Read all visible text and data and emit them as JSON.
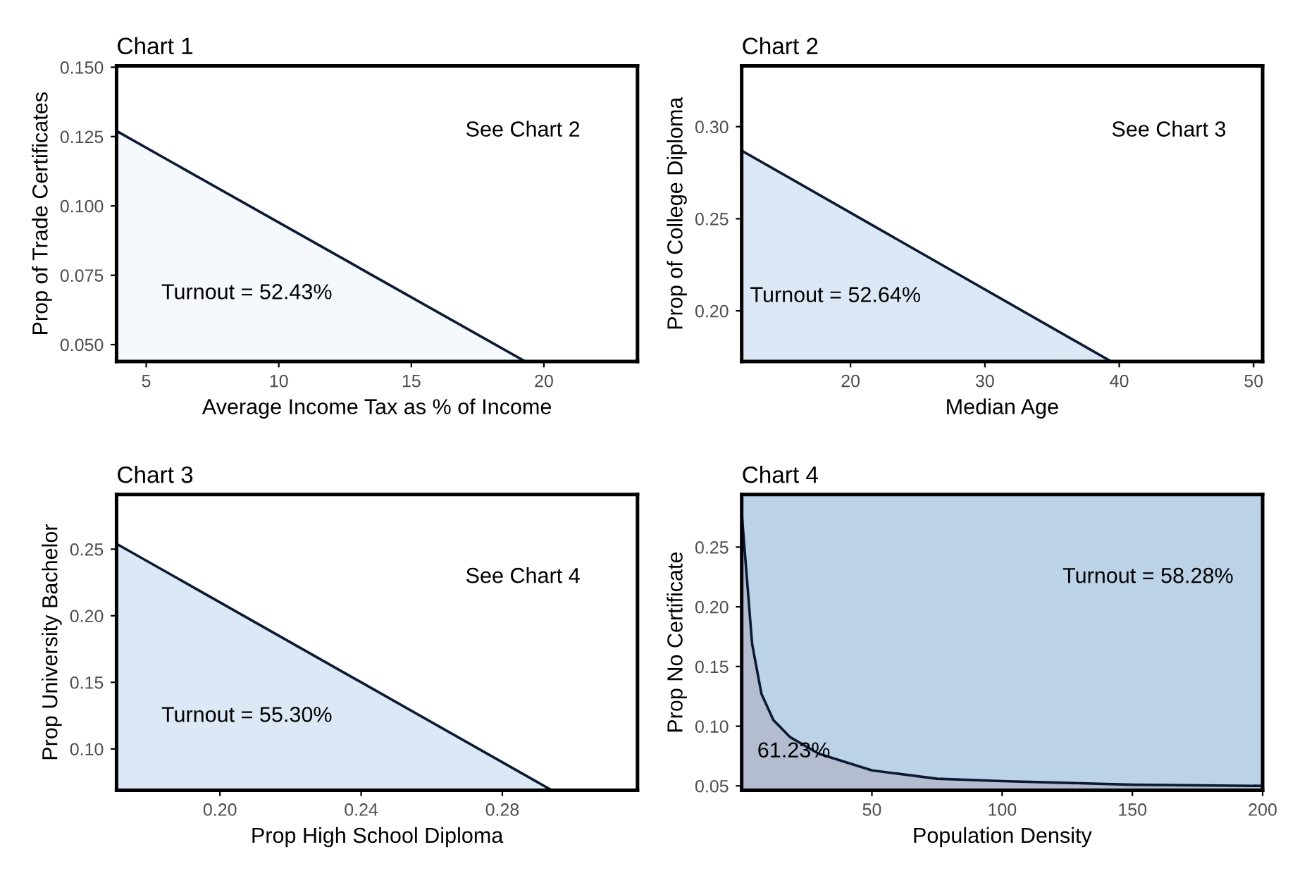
{
  "chart_data": [
    {
      "type": "area",
      "title": "Chart 1",
      "xlabel": "Average Income Tax as % of Income",
      "ylabel": "Prop of Trade Certificates",
      "xlim": [
        3.88,
        23.53
      ],
      "ylim": [
        0.0439,
        0.1505
      ],
      "xticks": [
        5,
        10,
        15,
        20
      ],
      "yticks": [
        {
          "value": 0.05,
          "label": "0.050"
        },
        {
          "value": 0.075,
          "label": "0.075"
        },
        {
          "value": 0.1,
          "label": "0.100"
        },
        {
          "value": 0.125,
          "label": "0.125"
        },
        {
          "value": 0.15,
          "label": "0.150"
        }
      ],
      "grid": false,
      "series": [
        {
          "color": "#f5f9fe",
          "x": [
            3.88,
            19.3
          ],
          "values": [
            0.127,
            0.0439
          ]
        }
      ],
      "annotations": [
        "See Chart 2",
        "Turnout = 52.43%"
      ]
    },
    {
      "type": "area",
      "title": "Chart 2",
      "xlabel": "Median Age",
      "ylabel": "Prop of College Diploma",
      "xlim": [
        11.9,
        50.67
      ],
      "ylim": [
        0.1725,
        0.333
      ],
      "xticks": [
        20,
        30,
        40,
        50
      ],
      "yticks": [
        {
          "value": 0.2,
          "label": "0.20"
        },
        {
          "value": 0.25,
          "label": "0.25"
        },
        {
          "value": 0.3,
          "label": "0.30"
        }
      ],
      "grid": false,
      "series": [
        {
          "color": "#dce8f5",
          "x": [
            11.9,
            39.4
          ],
          "values": [
            0.287,
            0.1725
          ]
        }
      ],
      "annotations": [
        "See Chart 3",
        "Turnout = 52.64%"
      ]
    },
    {
      "type": "area",
      "title": "Chart 3",
      "xlabel": "Prop High School Diploma",
      "ylabel": "Prop University Bachelor",
      "xlim": [
        0.1707,
        0.3183
      ],
      "ylim": [
        0.069,
        0.291
      ],
      "xticks": [
        {
          "value": 0.2,
          "label": "0.20"
        },
        {
          "value": 0.24,
          "label": "0.24"
        },
        {
          "value": 0.28,
          "label": "0.28"
        }
      ],
      "yticks": [
        {
          "value": 0.1,
          "label": "0.10"
        },
        0.15,
        {
          "value": 0.2,
          "label": "0.20"
        },
        0.25
      ],
      "grid": false,
      "series": [
        {
          "color": "#dce8f5",
          "x": [
            0.1707,
            0.294
          ],
          "values": [
            0.254,
            0.069
          ]
        }
      ],
      "annotations": [
        "See Chart 4",
        "Turnout = 55.30%"
      ]
    },
    {
      "type": "area",
      "title": "Chart 4",
      "xlabel": "Population Density",
      "ylabel": "Prop No Certificate",
      "xlim": [
        0,
        200
      ],
      "ylim": [
        0.0464,
        0.294
      ],
      "xticks": [
        50,
        100,
        150,
        200
      ],
      "yticks": [
        0.05,
        {
          "value": 0.1,
          "label": "0.10"
        },
        0.15,
        {
          "value": 0.2,
          "label": "0.20"
        },
        0.25
      ],
      "grid": false,
      "bands": [
        {
          "axis": "y",
          "from": 0.0464,
          "to": 0.294,
          "color": "#bcd3e7"
        }
      ],
      "series": [
        {
          "color": "#b3bdcf",
          "x": [
            0,
            4,
            7.6,
            12.2,
            18.5,
            29.5,
            50,
            75,
            100,
            150,
            200
          ],
          "values": [
            0.279,
            0.169,
            0.127,
            0.105,
            0.091,
            0.077,
            0.063,
            0.056,
            0.054,
            0.051,
            0.05
          ]
        }
      ],
      "annotations": [
        "Turnout = 58.28%",
        "61.23%"
      ]
    }
  ]
}
